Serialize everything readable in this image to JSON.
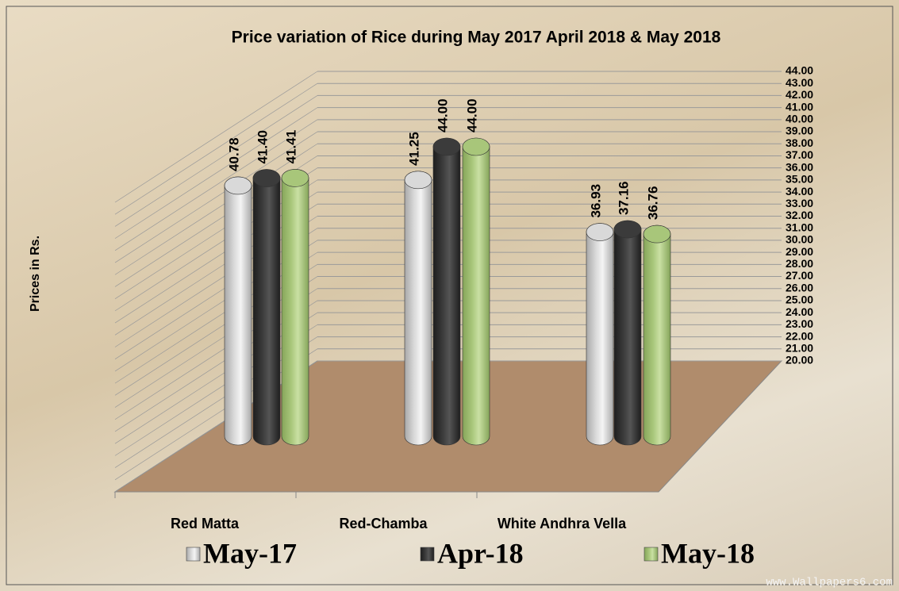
{
  "chart_data": {
    "type": "bar3d",
    "title": "Price variation of Rice during  May  2017  April 2018 &  May 2018",
    "y_label": "Prices in Rs.",
    "watermark": "www.Wallpapers6.com",
    "categories": [
      "Red Matta",
      "Red-Chamba",
      "White Andhra Vella"
    ],
    "series": [
      {
        "name": "May-17",
        "color": "#d9d9d9",
        "values": [
          40.78,
          41.25,
          36.93
        ],
        "value_labels": [
          "40.78",
          "41.25",
          "36.93"
        ]
      },
      {
        "name": "Apr-18",
        "color": "#3b3b3b",
        "values": [
          41.4,
          44,
          37.16
        ],
        "value_labels": [
          "41.40",
          "44.00",
          "37.16"
        ]
      },
      {
        "name": "May-18",
        "color": "#a8c67a",
        "values": [
          41.41,
          44,
          36.76
        ],
        "value_labels": [
          "41.41",
          "44.00",
          "36.76"
        ]
      }
    ],
    "ylim": [
      20,
      44
    ],
    "yticks": [
      {
        "value": 20,
        "label": "20.00"
      },
      {
        "value": 21,
        "label": "21.00"
      },
      {
        "value": 22,
        "label": "22.00"
      },
      {
        "value": 23,
        "label": "23.00"
      },
      {
        "value": 24,
        "label": "24.00"
      },
      {
        "value": 25,
        "label": "25.00"
      },
      {
        "value": 26,
        "label": "26.00"
      },
      {
        "value": 27,
        "label": "27.00"
      },
      {
        "value": 28,
        "label": "28.00"
      },
      {
        "value": 29,
        "label": "29.00"
      },
      {
        "value": 30,
        "label": "30.00"
      },
      {
        "value": 31,
        "label": "31.00"
      },
      {
        "value": 32,
        "label": "32.00"
      },
      {
        "value": 33,
        "label": "33.00"
      },
      {
        "value": 34,
        "label": "34.00"
      },
      {
        "value": 35,
        "label": "35.00"
      },
      {
        "value": 36,
        "label": "36.00"
      },
      {
        "value": 37,
        "label": "37.00"
      },
      {
        "value": 38,
        "label": "38.00"
      },
      {
        "value": 39,
        "label": "39.00"
      },
      {
        "value": 40,
        "label": "40.00"
      },
      {
        "value": 41,
        "label": "41.00"
      },
      {
        "value": 42,
        "label": "42.00"
      },
      {
        "value": 43,
        "label": "43.00"
      },
      {
        "value": 44,
        "label": "44.00"
      }
    ],
    "grid": true
  }
}
